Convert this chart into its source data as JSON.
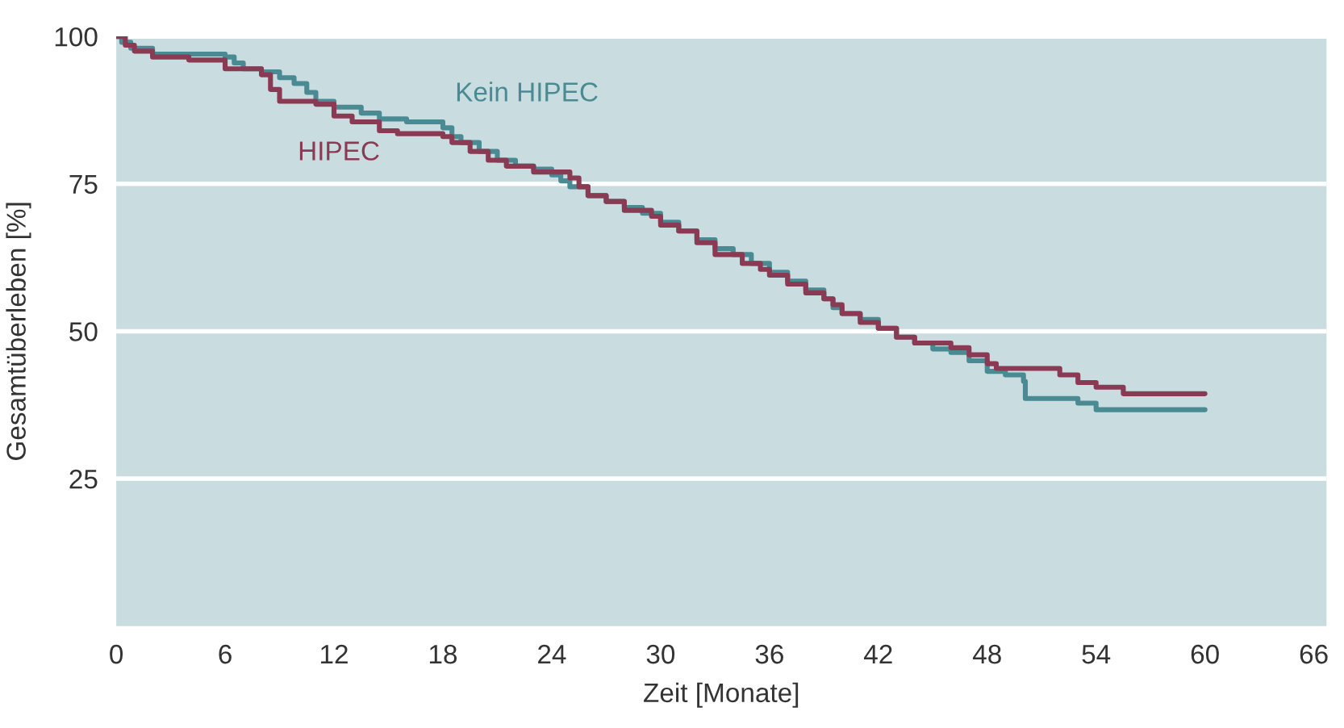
{
  "chart_data": {
    "type": "step",
    "xlabel": "Zeit [Monate]",
    "ylabel": "Gesamtüberleben [%]",
    "xlim": [
      0,
      66.7
    ],
    "xticks": [
      0,
      6,
      12,
      18,
      24,
      30,
      36,
      42,
      48,
      54,
      60,
      66
    ],
    "ylim": [
      0,
      100
    ],
    "yticks": [
      25,
      50,
      75,
      100
    ],
    "grid": "y",
    "legend": false,
    "series": [
      {
        "name": "Kein HIPEC",
        "color": "#4a8a92",
        "x": [
          0,
          0.3,
          0.8,
          2,
          6,
          6.5,
          7,
          8,
          9,
          9.8,
          10.5,
          11,
          12,
          13.5,
          14.5,
          16,
          18,
          18.5,
          19,
          20,
          21,
          22,
          23,
          24,
          24.5,
          25,
          26,
          27,
          28,
          29,
          30,
          31,
          32,
          33,
          34,
          35,
          36,
          37,
          38,
          39,
          39.5,
          40,
          41,
          42,
          43,
          44,
          45,
          46,
          47,
          48,
          49,
          50,
          50.1,
          53,
          54,
          60
        ],
        "values": [
          100,
          99,
          98,
          97,
          96.5,
          95.5,
          94.5,
          94,
          93,
          92,
          90.5,
          89,
          88,
          87,
          86,
          85.5,
          84.5,
          83,
          82,
          80.5,
          79,
          78,
          77.5,
          76.5,
          75.5,
          74.5,
          73,
          72,
          71,
          70,
          68.5,
          67,
          65.5,
          64,
          63,
          61.5,
          60,
          58.5,
          57,
          55.5,
          54,
          53,
          52,
          50.5,
          49,
          48,
          47,
          46.4,
          45,
          43.2,
          42.6,
          41.5,
          38.6,
          37.8,
          36.7,
          36.7
        ]
      },
      {
        "name": "HIPEC",
        "color": "#8a3a52",
        "x": [
          0,
          0.5,
          1,
          2,
          4,
          6,
          8,
          8.5,
          9,
          11,
          12,
          13,
          14.5,
          15.5,
          18,
          18.5,
          19.5,
          20.5,
          21.5,
          23,
          25,
          25.5,
          26,
          27,
          28,
          29.5,
          30,
          31,
          32,
          33,
          34.5,
          35.5,
          36,
          37,
          38,
          39,
          39.5,
          40,
          41,
          42,
          43,
          44,
          46,
          47,
          48,
          48.5,
          52,
          53,
          54,
          55.5,
          60
        ],
        "values": [
          100,
          98.5,
          97.5,
          96.5,
          96,
          94.5,
          93.5,
          91,
          89,
          88.5,
          86.5,
          85.5,
          84,
          83.5,
          83,
          82,
          80.5,
          79,
          78,
          77,
          76,
          74.5,
          73,
          72,
          70.5,
          69.5,
          68,
          67,
          65,
          63,
          61.5,
          60.5,
          59.5,
          58,
          56.5,
          55.5,
          54.5,
          53,
          51.5,
          50.5,
          49,
          48,
          47.2,
          46,
          44.5,
          43.7,
          42.6,
          41.3,
          40.5,
          39.4,
          39.4
        ]
      }
    ]
  }
}
